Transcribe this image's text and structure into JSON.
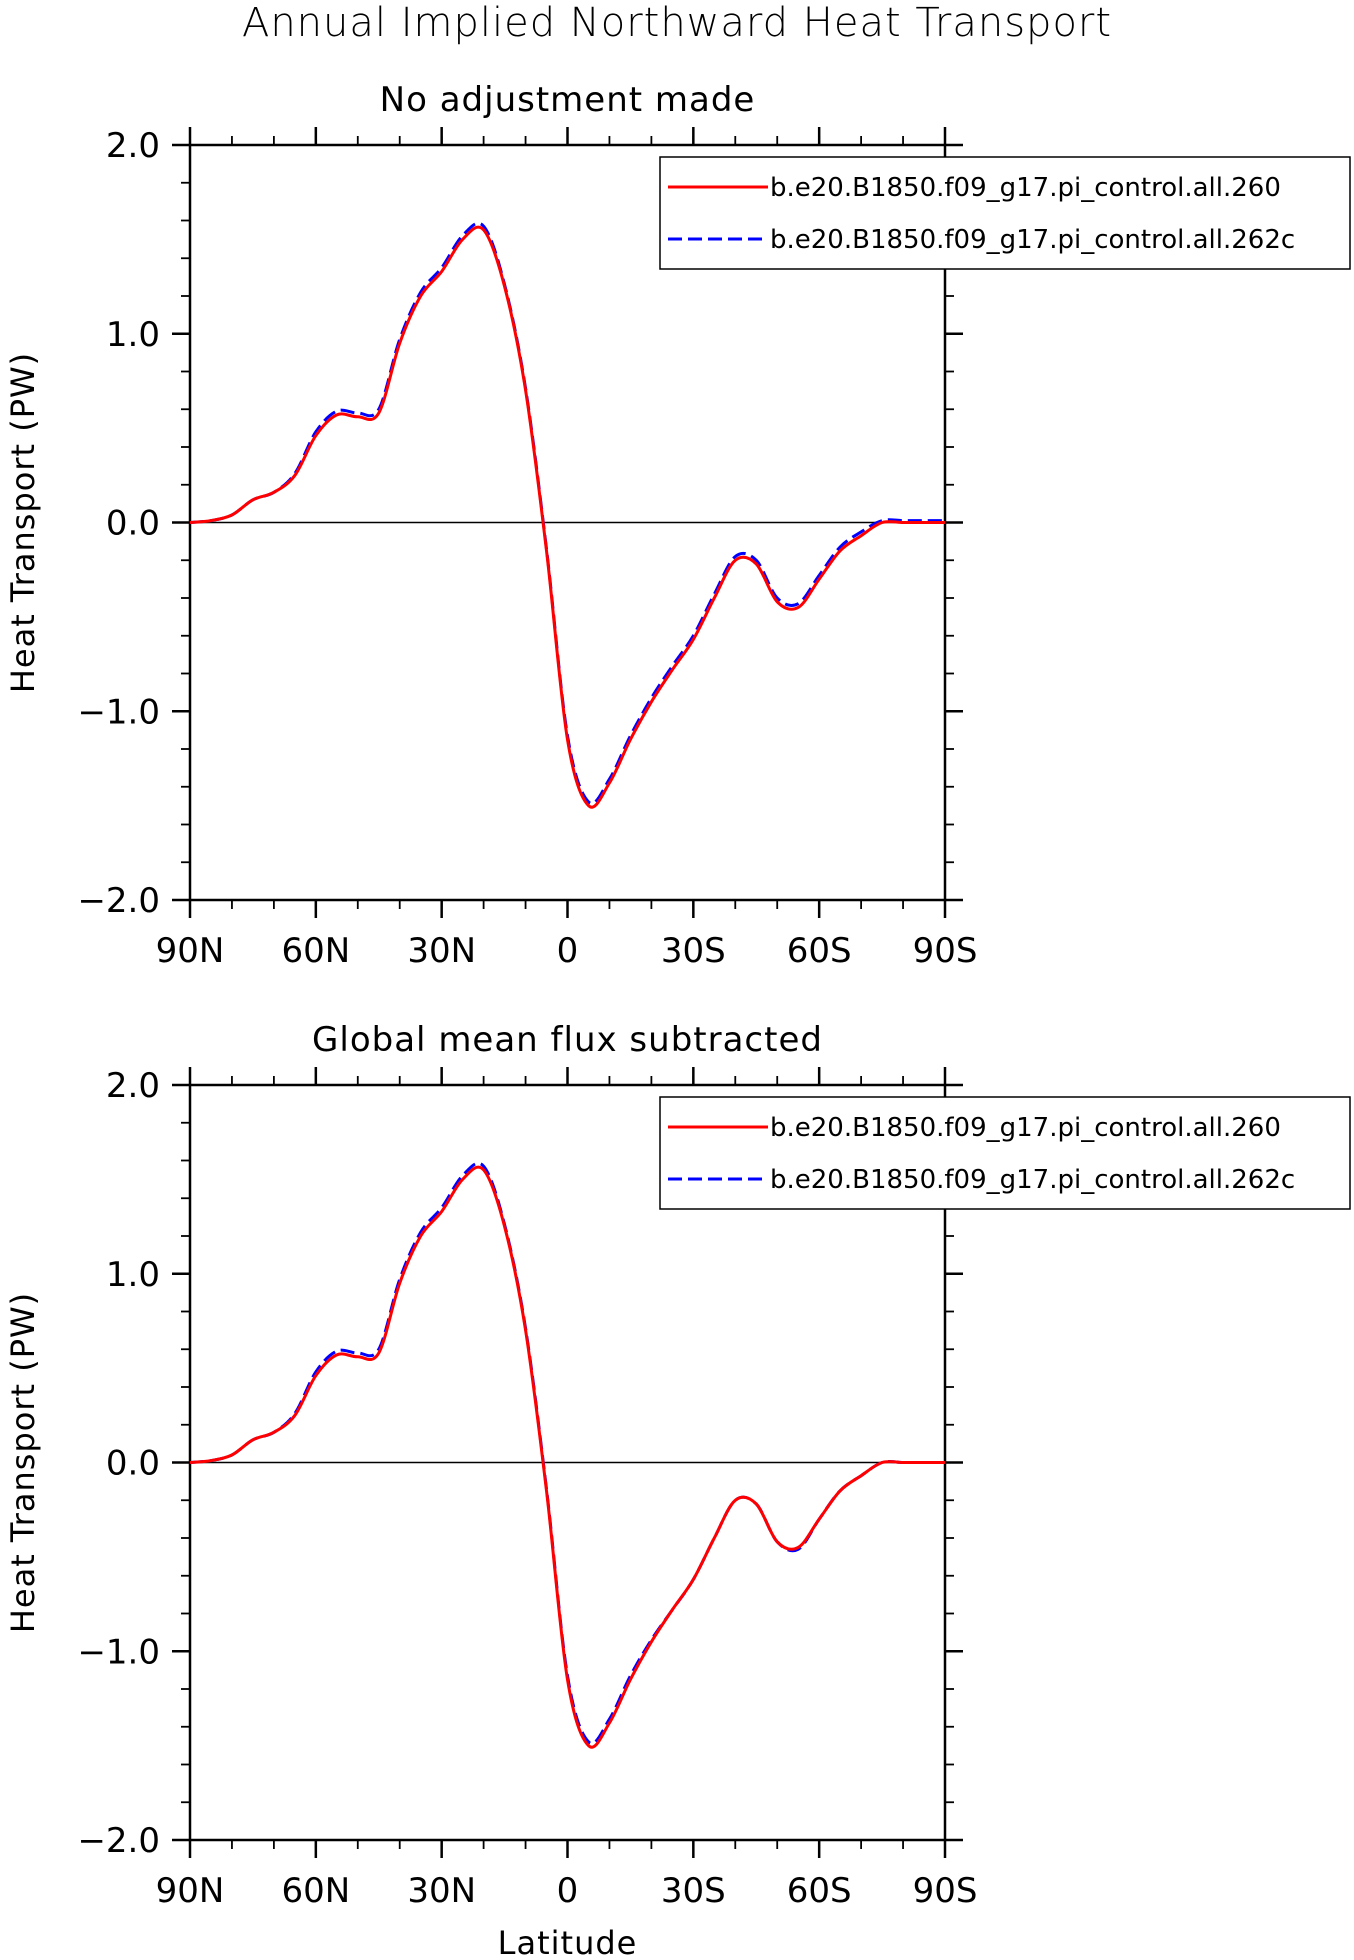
{
  "title": "Annual Implied Northward Heat Transport",
  "colors": {
    "series_1": "#ff0000",
    "series_2": "#0000ff",
    "zero_line": "#000000"
  },
  "chart_data": [
    {
      "type": "line",
      "title": "No adjustment made",
      "xlabel": "",
      "ylabel": "Heat Transport (PW)",
      "xlim": [
        90,
        -90
      ],
      "ylim": [
        -2.0,
        2.0
      ],
      "xticks": [
        90,
        60,
        30,
        0,
        -30,
        -60,
        -90
      ],
      "xtick_labels": [
        "90N",
        "60N",
        "30N",
        "0",
        "30S",
        "60S",
        "90S"
      ],
      "yticks": [
        2.0,
        1.0,
        0.0,
        -1.0,
        -2.0
      ],
      "ytick_labels": [
        "2.0",
        "1.0",
        "0.0",
        "−1.0",
        "−2.0"
      ],
      "zero_line": true,
      "legend_position": "top-right",
      "x": [
        90,
        85,
        80,
        75,
        70,
        65,
        60,
        55,
        50,
        45,
        40,
        35,
        30,
        25,
        20,
        15,
        10,
        5,
        0,
        -5,
        -10,
        -15,
        -20,
        -25,
        -30,
        -35,
        -40,
        -45,
        -50,
        -55,
        -60,
        -65,
        -70,
        -75,
        -80,
        -85,
        -90
      ],
      "series": [
        {
          "name": "b.e20.B1850.f09_g17.pi_control.all.260",
          "style": "solid",
          "values": [
            0.0,
            0.01,
            0.04,
            0.12,
            0.16,
            0.25,
            0.46,
            0.57,
            0.56,
            0.58,
            0.95,
            1.2,
            1.33,
            1.5,
            1.55,
            1.25,
            0.7,
            -0.15,
            -1.15,
            -1.5,
            -1.38,
            -1.15,
            -0.95,
            -0.78,
            -0.62,
            -0.4,
            -0.2,
            -0.22,
            -0.42,
            -0.45,
            -0.3,
            -0.15,
            -0.07,
            0.0,
            0.0,
            0.0,
            0.0
          ]
        },
        {
          "name": "b.e20.B1850.f09_g17.pi_control.all.262c",
          "style": "dashed",
          "values": [
            0.0,
            0.01,
            0.04,
            0.12,
            0.16,
            0.26,
            0.48,
            0.59,
            0.58,
            0.6,
            0.97,
            1.22,
            1.35,
            1.52,
            1.57,
            1.26,
            0.71,
            -0.14,
            -1.13,
            -1.48,
            -1.36,
            -1.13,
            -0.93,
            -0.76,
            -0.6,
            -0.38,
            -0.18,
            -0.2,
            -0.4,
            -0.43,
            -0.28,
            -0.13,
            -0.05,
            0.01,
            0.01,
            0.01,
            0.01
          ]
        }
      ]
    },
    {
      "type": "line",
      "title": "Global mean flux subtracted",
      "xlabel": "Latitude",
      "ylabel": "Heat Transport (PW)",
      "xlim": [
        90,
        -90
      ],
      "ylim": [
        -2.0,
        2.0
      ],
      "xticks": [
        90,
        60,
        30,
        0,
        -30,
        -60,
        -90
      ],
      "xtick_labels": [
        "90N",
        "60N",
        "30N",
        "0",
        "30S",
        "60S",
        "90S"
      ],
      "yticks": [
        2.0,
        1.0,
        0.0,
        -1.0,
        -2.0
      ],
      "ytick_labels": [
        "2.0",
        "1.0",
        "0.0",
        "−1.0",
        "−2.0"
      ],
      "zero_line": true,
      "legend_position": "top-right",
      "x": [
        90,
        85,
        80,
        75,
        70,
        65,
        60,
        55,
        50,
        45,
        40,
        35,
        30,
        25,
        20,
        15,
        10,
        5,
        0,
        -5,
        -10,
        -15,
        -20,
        -25,
        -30,
        -35,
        -40,
        -45,
        -50,
        -55,
        -60,
        -65,
        -70,
        -75,
        -80,
        -85,
        -90
      ],
      "series": [
        {
          "name": "b.e20.B1850.f09_g17.pi_control.all.260",
          "style": "solid",
          "values": [
            0.0,
            0.01,
            0.04,
            0.12,
            0.16,
            0.25,
            0.46,
            0.57,
            0.56,
            0.58,
            0.95,
            1.2,
            1.33,
            1.5,
            1.55,
            1.25,
            0.7,
            -0.15,
            -1.15,
            -1.5,
            -1.38,
            -1.15,
            -0.95,
            -0.78,
            -0.62,
            -0.4,
            -0.2,
            -0.22,
            -0.42,
            -0.45,
            -0.3,
            -0.15,
            -0.07,
            0.0,
            0.0,
            0.0,
            0.0
          ]
        },
        {
          "name": "b.e20.B1850.f09_g17.pi_control.all.262c",
          "style": "dashed",
          "values": [
            0.0,
            0.01,
            0.04,
            0.12,
            0.16,
            0.26,
            0.48,
            0.59,
            0.58,
            0.6,
            0.97,
            1.22,
            1.35,
            1.52,
            1.57,
            1.26,
            0.71,
            -0.14,
            -1.13,
            -1.48,
            -1.36,
            -1.13,
            -0.94,
            -0.78,
            -0.62,
            -0.4,
            -0.2,
            -0.22,
            -0.42,
            -0.46,
            -0.3,
            -0.15,
            -0.07,
            0.0,
            0.0,
            0.0,
            0.0
          ]
        }
      ]
    }
  ]
}
